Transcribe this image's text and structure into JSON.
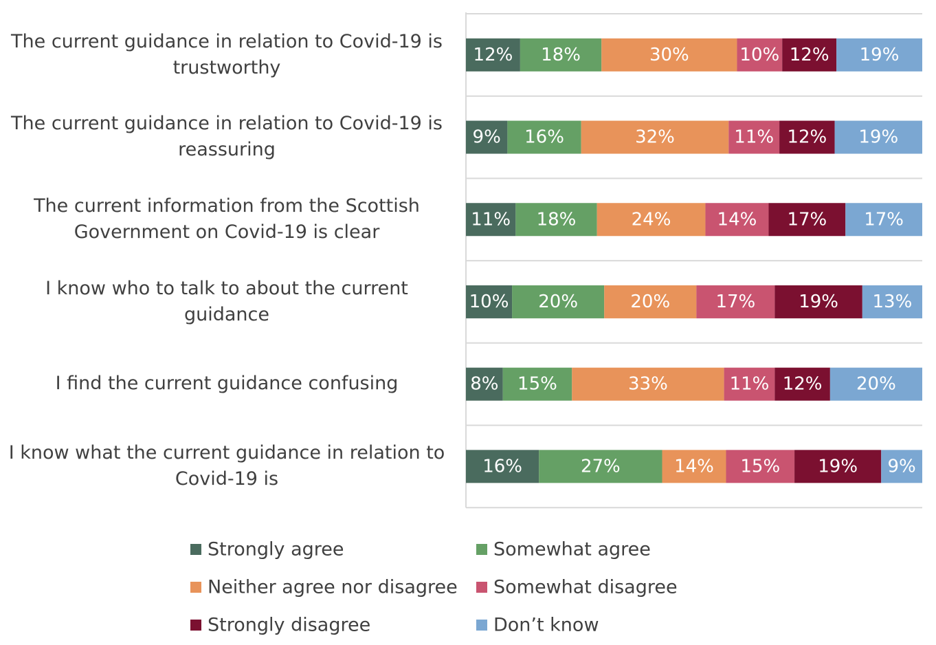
{
  "chart_data": {
    "type": "bar",
    "orientation": "horizontal",
    "stacked": "percent",
    "categories": [
      "The current guidance in relation to Covid-19 is trustworthy",
      "The current guidance in relation to Covid-19 is reassuring",
      "The current information from the Scottish Government on Covid-19 is clear",
      "I know who to talk to about the current guidance",
      "I find the current guidance confusing",
      "I know what the current guidance in relation to Covid-19 is"
    ],
    "series": [
      {
        "name": "Strongly agree",
        "color": "#4a6b5e",
        "values": [
          12,
          9,
          11,
          10,
          8,
          16
        ],
        "value_labels": [
          "12%",
          "9%",
          "11%",
          "10%",
          "8%",
          "16%"
        ]
      },
      {
        "name": "Somewhat agree",
        "color": "#65a065",
        "values": [
          18,
          16,
          18,
          20,
          15,
          27
        ],
        "value_labels": [
          "18%",
          "16%",
          "18%",
          "20%",
          "15%",
          "27%"
        ]
      },
      {
        "name": "Neither agree nor disagree",
        "color": "#e8935a",
        "values": [
          30,
          32,
          24,
          20,
          33,
          14
        ],
        "value_labels": [
          "30%",
          "32%",
          "24%",
          "20%",
          "33%",
          "14%"
        ]
      },
      {
        "name": "Somewhat disagree",
        "color": "#c95470",
        "values": [
          10,
          11,
          14,
          17,
          11,
          15
        ],
        "value_labels": [
          "10%",
          "11%",
          "14%",
          "17%",
          "11%",
          "15%"
        ]
      },
      {
        "name": "Strongly disagree",
        "color": "#7b1030",
        "values": [
          12,
          12,
          17,
          19,
          12,
          19
        ],
        "value_labels": [
          "12%",
          "12%",
          "17%",
          "19%",
          "12%",
          "19%"
        ]
      },
      {
        "name": "Don’t know",
        "color": "#7ba7d2",
        "values": [
          19,
          19,
          17,
          13,
          20,
          9
        ],
        "value_labels": [
          "19%",
          "19%",
          "17%",
          "13%",
          "20%",
          "9%"
        ]
      }
    ]
  }
}
